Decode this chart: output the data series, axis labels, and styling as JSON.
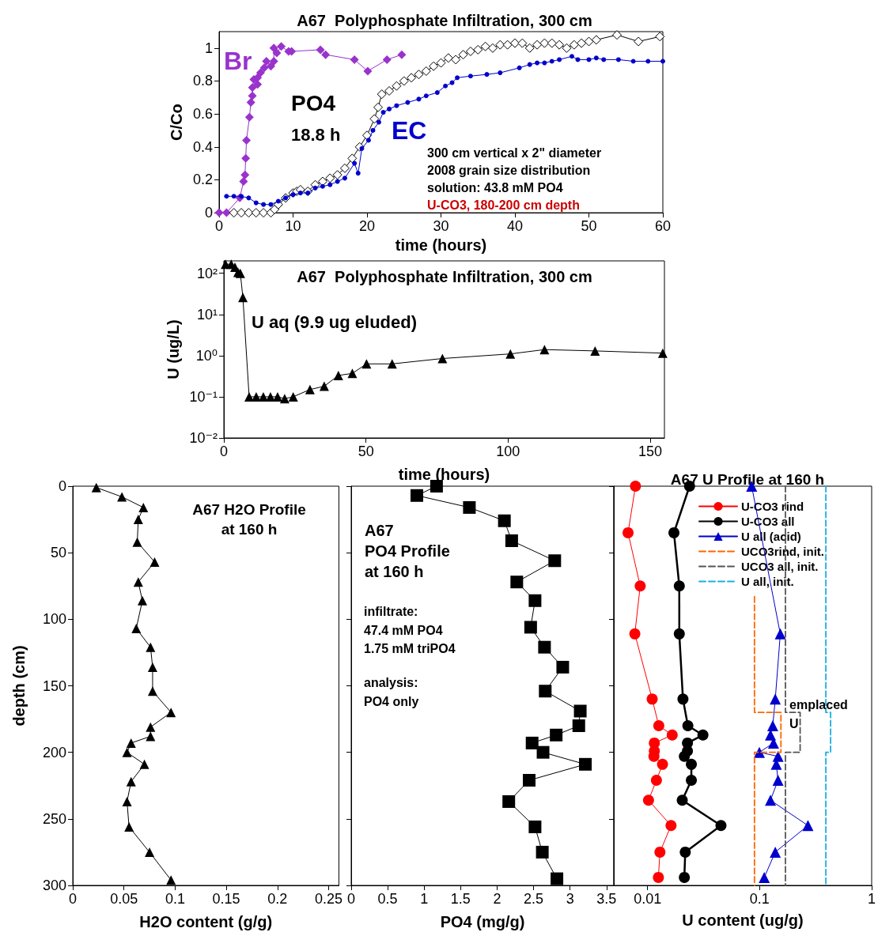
{
  "chart_data": [
    {
      "type": "line",
      "title": "A67  Polyphosphate Infiltration, 300 cm",
      "xlabel": "time (hours)",
      "ylabel": "C/Co",
      "xlim": [
        0,
        60
      ],
      "xticks": [
        0,
        10,
        20,
        30,
        40,
        50,
        60
      ],
      "ylim": [
        0,
        1.1
      ],
      "yticks": [
        0,
        0.2,
        0.4,
        0.6,
        0.8,
        1.0
      ],
      "annotations": [
        "18.8 h",
        "300 cm vertical x 2\" diameter",
        "2008 grain size distribution",
        "solution: 43.8 mM PO4",
        "U-CO3, 180-200 cm depth"
      ],
      "series": [
        {
          "name": "Br",
          "color": "#9933cc",
          "marker": "diamond",
          "x": [
            0,
            1,
            2.8,
            3.3,
            3.5,
            3.6,
            3.7,
            4.1,
            4.3,
            4.5,
            4.5,
            4.7,
            5.2,
            5.2,
            5.6,
            6.1,
            6.4,
            7.0,
            7.4,
            7.4,
            7.8,
            8.4,
            9.4,
            9.8,
            13.7,
            14.4,
            18.3,
            20.1,
            22.7,
            24.7
          ],
          "values": [
            0,
            0,
            0.09,
            0.19,
            0.23,
            0.33,
            0.44,
            0.58,
            0.67,
            0.71,
            0.76,
            0.81,
            0.78,
            0.82,
            0.85,
            0.88,
            0.92,
            0.89,
            0.92,
            1.0,
            0.97,
            1.01,
            0.98,
            0.98,
            0.99,
            0.96,
            0.93,
            0.86,
            0.93,
            0.96
          ]
        },
        {
          "name": "PO4",
          "color": "#000000",
          "marker": "diamond",
          "x": [
            2,
            3,
            4,
            5,
            6,
            7,
            7.5,
            8,
            9,
            10,
            10.5,
            11,
            12,
            13,
            14,
            15,
            16,
            17,
            18,
            19,
            20,
            21,
            21.5,
            22,
            23,
            24,
            25,
            26,
            27,
            28,
            29,
            30,
            31,
            32,
            33,
            34,
            35,
            36,
            37,
            38,
            39,
            40,
            41,
            42,
            43,
            44,
            45,
            46,
            47,
            48,
            49,
            50,
            51,
            53.8,
            56.7,
            59.6
          ],
          "values": [
            0,
            0,
            0,
            0,
            0,
            0,
            0.02,
            0.05,
            0.09,
            0.12,
            0.13,
            0.14,
            0.13,
            0.17,
            0.19,
            0.21,
            0.23,
            0.27,
            0.33,
            0.4,
            0.47,
            0.57,
            0.64,
            0.72,
            0.74,
            0.77,
            0.8,
            0.82,
            0.84,
            0.86,
            0.89,
            0.91,
            0.94,
            0.93,
            0.96,
            0.98,
            0.99,
            1.01,
            1.0,
            1.02,
            1.02,
            1.03,
            1.03,
            1.0,
            1.02,
            1.03,
            1.03,
            1.02,
            1.0,
            1.02,
            1.03,
            1.04,
            1.05,
            1.08,
            1.04,
            1.07
          ]
        },
        {
          "name": "EC",
          "color": "#0000cc",
          "marker": "circle",
          "x": [
            1,
            2,
            3,
            4,
            5,
            6,
            7,
            8,
            9,
            10,
            11,
            12,
            13,
            14,
            15,
            16,
            17,
            18.3,
            18.8,
            19.3,
            20.2,
            20.8,
            21.6,
            22.2,
            23,
            24,
            25.5,
            27,
            28,
            29.5,
            30.6,
            31.5,
            32.2,
            34,
            36.2,
            38,
            40.6,
            42,
            43,
            44,
            45,
            46,
            47.7,
            48.5,
            50,
            51,
            52,
            54,
            56,
            58,
            60
          ],
          "values": [
            0.1,
            0.1,
            0.1,
            0.09,
            0.06,
            0.05,
            0.05,
            0.07,
            0.09,
            0.11,
            0.12,
            0.12,
            0.15,
            0.16,
            0.17,
            0.19,
            0.21,
            0.3,
            0.24,
            0.39,
            0.44,
            0.5,
            0.55,
            0.61,
            0.63,
            0.65,
            0.67,
            0.69,
            0.71,
            0.73,
            0.77,
            0.79,
            0.82,
            0.83,
            0.84,
            0.85,
            0.88,
            0.9,
            0.91,
            0.91,
            0.92,
            0.93,
            0.95,
            0.93,
            0.93,
            0.94,
            0.93,
            0.93,
            0.92,
            0.92,
            0.92
          ]
        }
      ]
    },
    {
      "type": "line",
      "title": "A67  Polyphosphate Infiltration, 300 cm",
      "xlabel": "time (hours)",
      "ylabel": "U (ug/L)",
      "log": "y",
      "marker": "triangle",
      "xlim": [
        0,
        155
      ],
      "xticks": [
        0,
        50,
        100,
        150
      ],
      "ylim": [
        0.01,
        200
      ],
      "yticks": [
        {
          "value": 0.01,
          "label": "10⁻²"
        },
        {
          "value": 0.1,
          "label": "10⁻¹"
        },
        {
          "value": 1,
          "label": "10⁰"
        },
        {
          "value": 10,
          "label": "10¹"
        },
        {
          "value": 100,
          "label": "10²"
        }
      ],
      "annotations": [
        "U aq (9.9 ug eluded)"
      ],
      "series": [
        {
          "color": "#000000",
          "x": [
            0.6,
            2.6,
            3.9,
            5,
            5.8,
            6.7,
            8.9,
            11.4,
            13.9,
            16.4,
            18.9,
            21.4,
            24.4,
            30.3,
            35.3,
            40.3,
            45.2,
            50.2,
            59.2,
            76.9,
            100.8,
            112.8,
            130.6,
            154.4
          ],
          "values": [
            166,
            166,
            140,
            105,
            100,
            26,
            0.1,
            0.1,
            0.1,
            0.1,
            0.1,
            0.09,
            0.1,
            0.15,
            0.18,
            0.33,
            0.37,
            0.63,
            0.63,
            0.85,
            1.1,
            1.4,
            1.3,
            1.15
          ]
        }
      ]
    },
    {
      "type": "line",
      "title": "A67 H2O Profile\nat 160 h",
      "xlabel": "H2O content (g/g)",
      "ylabel": "depth (cm)",
      "marker": "triangle",
      "xlim": [
        0,
        0.26
      ],
      "xticks": [
        0,
        0.05,
        0.1,
        0.15,
        0.2,
        0.25
      ],
      "ylim": [
        300,
        0
      ],
      "yticks": [
        0,
        50,
        100,
        150,
        200,
        250,
        300
      ],
      "series": [
        {
          "color": "#000000",
          "x": [
            0.023,
            0.048,
            0.069,
            0.064,
            0.063,
            0.08,
            0.064,
            0.068,
            0.062,
            0.076,
            0.078,
            0.078,
            0.096,
            0.076,
            0.076,
            0.057,
            0.053,
            0.07,
            0.057,
            0.053,
            0.055,
            0.075,
            0.096
          ],
          "values": [
            1,
            8,
            16,
            25,
            42,
            57,
            72,
            86,
            107,
            121,
            136,
            154,
            170,
            181,
            188,
            193,
            200,
            209,
            222,
            237,
            256,
            275,
            296
          ]
        }
      ]
    },
    {
      "type": "line",
      "title": "A67\nPO4 Profile\nat 160 h",
      "xlabel": "PO4 (mg/g)",
      "marker": "square",
      "xlim": [
        0,
        3.6
      ],
      "xticks": [
        0,
        0.5,
        1,
        1.5,
        2,
        2.5,
        3,
        3.5
      ],
      "ylim": [
        300,
        0
      ],
      "yticks": [
        0,
        50,
        100,
        150,
        200,
        250,
        300
      ],
      "tick_labels": "x",
      "annotations": [
        "infiltrate:\n47.4 mM PO4\n1.75 mM triPO4",
        "analysis:\nPO4 only"
      ],
      "series": [
        {
          "color": "#000000",
          "x": [
            1.17,
            0.9,
            1.62,
            2.1,
            2.2,
            2.79,
            2.27,
            2.52,
            2.46,
            2.65,
            2.9,
            2.66,
            3.14,
            3.12,
            2.81,
            2.48,
            2.63,
            3.21,
            2.44,
            2.16,
            2.52,
            2.62,
            2.82
          ],
          "values": [
            0,
            7,
            16,
            26,
            41,
            56,
            72,
            86,
            106,
            121,
            136,
            154,
            169,
            180,
            187,
            193,
            200,
            209,
            221,
            237,
            256,
            275,
            295
          ]
        }
      ]
    },
    {
      "type": "line",
      "title": "A67 U Profile at 160 h",
      "xlabel": "U content (ug/g)",
      "log": "x",
      "legend": "top right",
      "xlim": [
        0.005,
        1
      ],
      "xticks": [
        0.01,
        0.1,
        1
      ],
      "ylim": [
        300,
        0
      ],
      "yticks": [
        0,
        50,
        100,
        150,
        200,
        250,
        300
      ],
      "tick_labels": "x",
      "annotations": [
        "emplaced\nU"
      ],
      "series": [
        {
          "name": "U-CO3 rind",
          "color": "#ff0000",
          "marker": "circle",
          "x": [
            0.0078,
            0.0067,
            0.0086,
            0.0077,
            0.011,
            0.0126,
            0.0166,
            0.0115,
            0.0115,
            0.0114,
            0.0136,
            0.012,
            0.0102,
            0.0162,
            0.0129,
            0.0125
          ],
          "values": [
            0,
            35,
            75,
            111,
            160,
            180,
            187,
            193,
            199,
            203,
            209,
            221,
            236,
            255,
            275,
            294
          ]
        },
        {
          "name": "U-CO3 all",
          "color": "#000000",
          "marker": "circle",
          "x": [
            0.0237,
            0.0172,
            0.0192,
            0.0192,
            0.0207,
            0.0229,
            0.0312,
            0.0227,
            0.0227,
            0.0213,
            0.0246,
            0.0246,
            0.0204,
            0.0452,
            0.0217,
            0.0213
          ],
          "values": [
            0,
            35,
            75,
            111,
            160,
            180,
            187,
            193,
            199,
            203,
            209,
            221,
            236,
            255,
            275,
            294
          ]
        },
        {
          "name": "U all (acid)",
          "color": "#0000cc",
          "marker": "triangle",
          "x": [
            0.085,
            0.153,
            0.138,
            0.131,
            0.125,
            0.133,
            0.0995,
            0.146,
            0.141,
            0.146,
            0.125,
            0.27,
            0.138,
            0.11
          ],
          "values": [
            0,
            111,
            160,
            180,
            187,
            193,
            200,
            203,
            209,
            221,
            236,
            255,
            275,
            294
          ]
        },
        {
          "name": "UCO3rind, init.",
          "color": "#ff6600",
          "marker": "none",
          "line_style": "dashed",
          "x": [
            0.09,
            0.09,
            0.155,
            0.155,
            0.09,
            0.09
          ],
          "values": [
            83,
            170,
            170,
            200,
            200,
            300
          ]
        },
        {
          "name": "UCO3 all, init.",
          "color": "#555555",
          "marker": "none",
          "line_style": "dashed",
          "x": [
            0.17,
            0.17,
            0.23,
            0.23,
            0.17,
            0.17
          ],
          "values": [
            0,
            170,
            170,
            200,
            200,
            300
          ]
        },
        {
          "name": "U all, init.",
          "color": "#1ab0e0",
          "marker": "none",
          "line_style": "dashed",
          "x": [
            0.39,
            0.39,
            0.43,
            0.43,
            0.39,
            0.39
          ],
          "values": [
            0,
            170,
            170,
            200,
            200,
            300
          ]
        }
      ]
    }
  ]
}
